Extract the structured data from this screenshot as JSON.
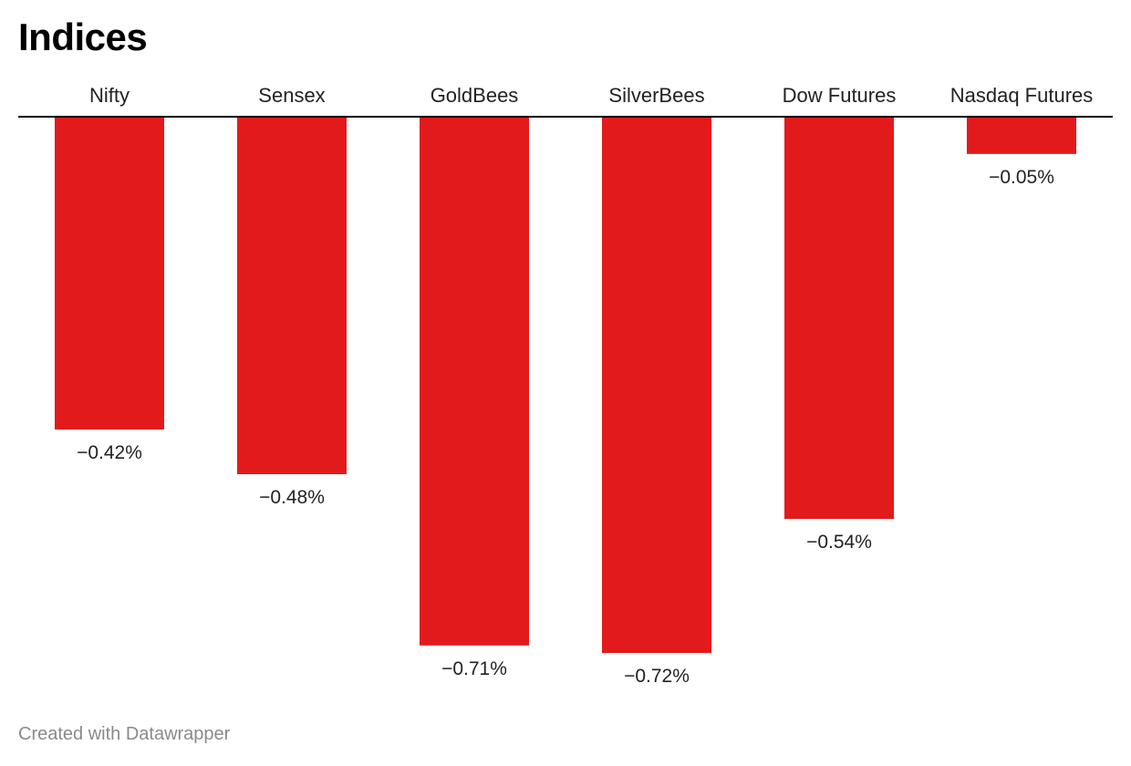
{
  "chart_data": {
    "type": "bar",
    "orientation": "vertical-negative",
    "title": "Indices",
    "categories": [
      "Nifty",
      "Sensex",
      "GoldBees",
      "SilverBees",
      "Dow Futures",
      "Nasdaq Futures"
    ],
    "values": [
      -0.42,
      -0.48,
      -0.71,
      -0.72,
      -0.54,
      -0.05
    ],
    "value_labels": [
      "−0.42%",
      "−0.48%",
      "−0.71%",
      "−0.72%",
      "−0.54%",
      "−0.05%"
    ],
    "ylim": [
      -0.72,
      0
    ],
    "grid": false,
    "bar_color": "#e31a1c",
    "axis_color": "#000000"
  },
  "footer": {
    "credit": "Created with Datawrapper"
  }
}
